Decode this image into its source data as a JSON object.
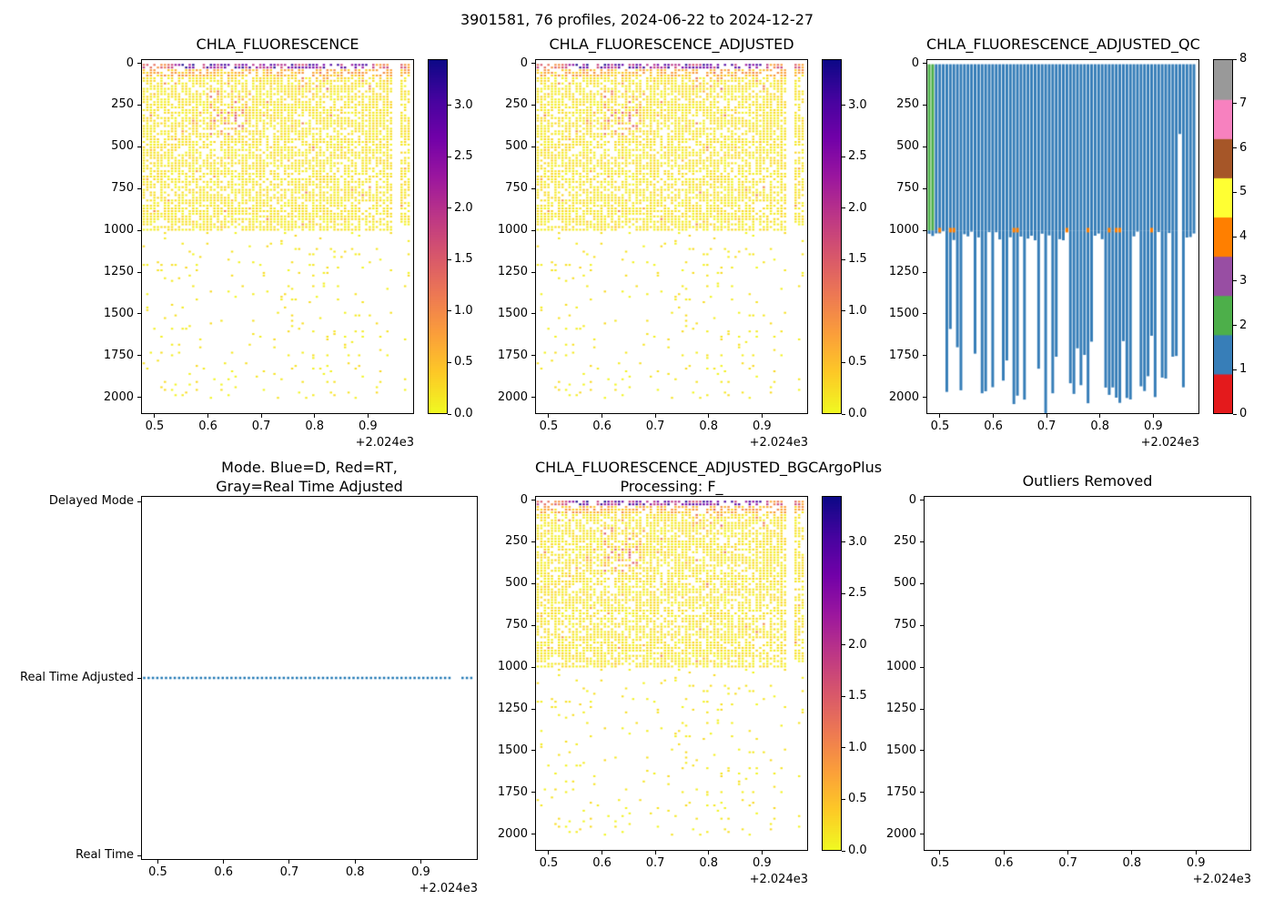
{
  "figure": {
    "suptitle": "3901581, 76 profiles, 2024-06-22 to 2024-12-27",
    "background": "#ffffff"
  },
  "palettes": {
    "plasma_stops": [
      "#0d0887",
      "#46039f",
      "#7201a8",
      "#9c179e",
      "#bd3786",
      "#d8576b",
      "#ed7953",
      "#fb9f3a",
      "#fdca26",
      "#f0f921"
    ],
    "qc_flag_colors": [
      "#e41a1c",
      "#377eb8",
      "#4daf4a",
      "#984ea3",
      "#ff7f00",
      "#ffff33",
      "#a65628",
      "#f781bf",
      "#999999"
    ],
    "mode_dot_color": "#1f77b4"
  },
  "chart_data": [
    {
      "type": "scatter",
      "title": "CHLA_FLUORESCENCE",
      "x_ticks": [
        "0.5",
        "0.6",
        "0.7",
        "0.8",
        "0.9"
      ],
      "xlabel_offset": "+2.024e3",
      "xlim": [
        0.4745,
        0.9865
      ],
      "y_ticks": [
        "0",
        "250",
        "500",
        "750",
        "1000",
        "1250",
        "1500",
        "1750",
        "2000"
      ],
      "ylim": [
        -25,
        2100
      ],
      "y_inverted": true,
      "colorbar": {
        "colormap": "plasma_r",
        "vmin": 0,
        "vmax": 3.45,
        "ticks": [
          "0.0",
          "0.5",
          "1.0",
          "1.5",
          "2.0",
          "2.5",
          "3.0"
        ]
      },
      "data_summary": {
        "n_profiles": 76,
        "x_start": 2024.478,
        "x_end": 2024.978,
        "dense_sampling_depth_m": [
          0,
          1000
        ],
        "sparse_sampling_depth_m": [
          1000,
          2050
        ],
        "surface_chla_range": [
          0.6,
          3.4
        ],
        "background_chla_range": [
          0.0,
          0.3
        ],
        "bloom_patches": [
          {
            "x_range": [
              2024.6,
              2024.68
            ],
            "depth_m": [
              150,
              430
            ],
            "chla": [
              0.5,
              1.6
            ]
          },
          {
            "x_range": [
              2024.77,
              2024.83
            ],
            "depth_m": [
              40,
              160
            ],
            "chla": [
              0.5,
              1.5
            ]
          }
        ],
        "missing_profile_x": [
          2024.951,
          2024.958
        ]
      }
    },
    {
      "type": "scatter",
      "title": "CHLA_FLUORESCENCE_ADJUSTED",
      "x_ticks": [
        "0.5",
        "0.6",
        "0.7",
        "0.8",
        "0.9"
      ],
      "xlabel_offset": "+2.024e3",
      "xlim": [
        0.4745,
        0.9865
      ],
      "y_ticks": [
        "0",
        "250",
        "500",
        "750",
        "1000",
        "1250",
        "1500",
        "1750",
        "2000"
      ],
      "ylim": [
        -25,
        2100
      ],
      "y_inverted": true,
      "colorbar": {
        "colormap": "plasma_r",
        "vmin": 0,
        "vmax": 3.45,
        "ticks": [
          "0.0",
          "0.5",
          "1.0",
          "1.5",
          "2.0",
          "2.5",
          "3.0"
        ]
      },
      "data_summary": {
        "same_as": "CHLA_FLUORESCENCE"
      }
    },
    {
      "type": "qc-flag-lines",
      "title": "CHLA_FLUORESCENCE_ADJUSTED_QC",
      "x_ticks": [
        "0.5",
        "0.6",
        "0.7",
        "0.8",
        "0.9"
      ],
      "xlabel_offset": "+2.024e3",
      "xlim": [
        0.4745,
        0.9865
      ],
      "y_ticks": [
        "0",
        "250",
        "500",
        "750",
        "1000",
        "1250",
        "1500",
        "1750",
        "2000"
      ],
      "ylim": [
        -25,
        2100
      ],
      "y_inverted": true,
      "colorbar": {
        "type": "discrete",
        "ticks": [
          "0",
          "1",
          "2",
          "3",
          "4",
          "5",
          "6",
          "7",
          "8"
        ],
        "colors": [
          "#e41a1c",
          "#377eb8",
          "#4daf4a",
          "#984ea3",
          "#ff7f00",
          "#ffff33",
          "#a65628",
          "#f781bf",
          "#999999"
        ]
      },
      "data_summary": {
        "dominant_flag": 1,
        "flag_2_profiles": "first two profiles, 0-1000 m (green)",
        "flag_4_spots": "scattered points near 1000 m (orange)",
        "dense_line_depth_m": 1000,
        "deep_lines_end_m": [
          1500,
          2100
        ],
        "short_line_depth_m": 420
      }
    },
    {
      "type": "categorical-scatter",
      "title": "Mode. Blue=D, Red=RT,\nGray=Real Time Adjusted",
      "categories": [
        "Delayed Mode",
        "Real Time Adjusted",
        "Real Time"
      ],
      "x_ticks": [
        "0.5",
        "0.6",
        "0.7",
        "0.8",
        "0.9"
      ],
      "xlabel_offset": "+2.024e3",
      "xlim": [
        0.4745,
        0.9865
      ],
      "line_color": "#1f77b4",
      "data_summary": {
        "all_profiles_mode": "Real Time Adjusted",
        "style": "dotted line across all profiles"
      }
    },
    {
      "type": "scatter",
      "title": "CHLA_FLUORESCENCE_ADJUSTED_BGCArgoPlus\nProcessing: F_",
      "x_ticks": [
        "0.5",
        "0.6",
        "0.7",
        "0.8",
        "0.9"
      ],
      "xlabel_offset": "+2.024e3",
      "xlim": [
        0.4745,
        0.9865
      ],
      "y_ticks": [
        "0",
        "250",
        "500",
        "750",
        "1000",
        "1250",
        "1500",
        "1750",
        "2000"
      ],
      "ylim": [
        -25,
        2100
      ],
      "y_inverted": true,
      "colorbar": {
        "colormap": "plasma_r",
        "vmin": 0,
        "vmax": 3.45,
        "ticks": [
          "0.0",
          "0.5",
          "1.0",
          "1.5",
          "2.0",
          "2.5",
          "3.0"
        ]
      },
      "data_summary": {
        "same_as": "CHLA_FLUORESCENCE_ADJUSTED"
      }
    },
    {
      "type": "empty",
      "title": "Outliers Removed",
      "x_ticks": [
        "0.5",
        "0.6",
        "0.7",
        "0.8",
        "0.9"
      ],
      "xlabel_offset": "+2.024e3",
      "xlim": [
        0.4745,
        0.9865
      ],
      "y_ticks": [
        "0",
        "250",
        "500",
        "750",
        "1000",
        "1250",
        "1500",
        "1750",
        "2000"
      ],
      "ylim": [
        -25,
        2100
      ],
      "y_inverted": true,
      "data_summary": {
        "points": 0
      }
    }
  ]
}
